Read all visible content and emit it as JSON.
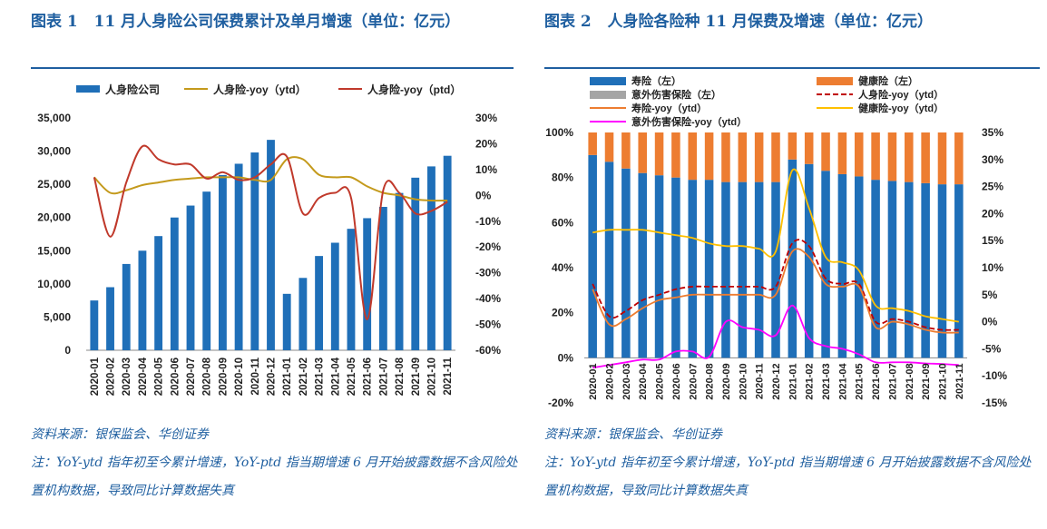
{
  "left": {
    "title_prefix": "图表 1",
    "title_text": "11 月人身险公司保费累计及单月增速（单位：亿元）",
    "source": "资料来源：银保监会、华创证券",
    "note": "注：YoY-ytd 指年初至今累计增速，YoY-ptd 指当期增速 6 月开始披露数据不含风险处置机构数据，导致同比计算数据失真"
  },
  "right": {
    "title_prefix": "图表 2",
    "title_text": "人身险各险种 11 月保费及增速（单位：亿元）",
    "source": "资料来源：银保监会、华创证券",
    "note": "注：YoY-ytd 指年初至今累计增速，YoY-ptd 指当期增速 6 月开始披露数据不含风险处置机构数据，导致同比计算数据失真"
  },
  "chart_data": [
    {
      "type": "bar",
      "title": "",
      "categories": [
        "2020-01",
        "2020-02",
        "2020-03",
        "2020-04",
        "2020-05",
        "2020-06",
        "2020-07",
        "2020-08",
        "2020-09",
        "2020-10",
        "2020-11",
        "2020-12",
        "2021-01",
        "2021-02",
        "2021-03",
        "2021-04",
        "2021-05",
        "2021-06",
        "2021-07",
        "2021-08",
        "2021-09",
        "2021-10",
        "2021-11"
      ],
      "ylim_left": [
        0,
        35000
      ],
      "yticks_left": [
        "0",
        "5,000",
        "10,000",
        "15,000",
        "20,000",
        "25,000",
        "30,000",
        "35,000"
      ],
      "ylim_right": [
        -60,
        30
      ],
      "yticks_right": [
        "-60%",
        "-50%",
        "-40%",
        "-30%",
        "-20%",
        "-10%",
        "0%",
        "10%",
        "20%",
        "30%"
      ],
      "legend_position": "top",
      "colors": {
        "bar": "#1f6fb8",
        "ytd": "#c49a1c",
        "ptd": "#c0392b"
      },
      "series": [
        {
          "name": "人身险公司",
          "type": "bar",
          "axis": "left",
          "values": [
            7500,
            9500,
            13000,
            15000,
            17200,
            20000,
            21800,
            23900,
            26400,
            28100,
            29800,
            31700,
            8500,
            10900,
            14200,
            16200,
            18300,
            19900,
            21600,
            23700,
            26000,
            27700,
            29300
          ]
        },
        {
          "name": "人身险-yoy（ytd）",
          "type": "line",
          "axis": "right",
          "values": [
            7,
            1,
            2,
            4,
            5,
            6,
            6.5,
            7,
            7,
            7,
            6,
            6,
            14,
            14,
            8,
            7,
            7,
            3.5,
            1,
            0,
            -1.5,
            -2,
            -2
          ]
        },
        {
          "name": "人身险-yoy（ptd）",
          "type": "line",
          "axis": "right",
          "values": [
            7,
            -16,
            5,
            19,
            14,
            12,
            12,
            6.5,
            9,
            6,
            7,
            12,
            15,
            -7,
            -1,
            1,
            -1,
            -48,
            2,
            1,
            -7,
            -6,
            -2.5
          ]
        }
      ]
    },
    {
      "type": "bar",
      "title": "",
      "categories": [
        "2020-01",
        "2020-02",
        "2020-03",
        "2020-04",
        "2020-05",
        "2020-06",
        "2020-07",
        "2020-08",
        "2020-09",
        "2020-10",
        "2020-11",
        "2020-12",
        "2021-01",
        "2021-02",
        "2021-03",
        "2021-04",
        "2021-05",
        "2021-06",
        "2021-07",
        "2021-08",
        "2021-09",
        "2021-10",
        "2021-11"
      ],
      "ylim_left": [
        -20,
        100
      ],
      "yticks_left": [
        "-20%",
        "0%",
        "20%",
        "40%",
        "60%",
        "80%",
        "100%"
      ],
      "ylim_right": [
        -15,
        35
      ],
      "yticks_right": [
        "-15%",
        "-10%",
        "-5%",
        "0%",
        "5%",
        "10%",
        "15%",
        "20%",
        "25%",
        "30%",
        "35%"
      ],
      "legend_position": "top",
      "colors": {
        "life": "#1f6fb8",
        "health": "#ed7d31",
        "accident": "#a5a5a5",
        "total_ytd": "#c00000",
        "life_ytd": "#ed7d31",
        "health_ytd": "#ffc000",
        "accident_ytd": "#ff00ff"
      },
      "series": [
        {
          "name": "寿险（左）",
          "type": "bar",
          "stack": "share",
          "axis": "left",
          "values": [
            90,
            87,
            84,
            82,
            81,
            80,
            79,
            79,
            78,
            78,
            78,
            78,
            88,
            86,
            83,
            81.5,
            80.5,
            79,
            78.5,
            78,
            77.5,
            77,
            77
          ]
        },
        {
          "name": "健康险（左）",
          "type": "bar",
          "stack": "share",
          "axis": "left",
          "values": [
            10,
            13,
            16,
            18,
            19,
            20,
            21,
            21,
            22,
            22,
            22,
            22,
            12,
            14,
            17,
            18.5,
            19.5,
            21,
            21.5,
            22,
            22.5,
            23,
            23
          ]
        },
        {
          "name": "意外伤害保险（左）",
          "type": "bar",
          "stack": "share",
          "axis": "left",
          "values": [
            0,
            0,
            0,
            0,
            0,
            0,
            0,
            0,
            0,
            0,
            0,
            0,
            0,
            0,
            0,
            0,
            0,
            0,
            0,
            0,
            0,
            0,
            0
          ]
        },
        {
          "name": "人身险-yoy（ytd）",
          "type": "line",
          "axis": "right",
          "values": [
            7,
            1,
            2,
            4,
            5,
            6,
            6.5,
            6.5,
            6.5,
            6.5,
            6.5,
            6.5,
            14.5,
            14,
            8,
            7,
            7,
            0,
            0.5,
            0,
            -1,
            -1.5,
            -1.5
          ]
        },
        {
          "name": "寿险-yoy（ytd）",
          "type": "line",
          "axis": "right",
          "values": [
            6,
            -0.5,
            0.5,
            2.5,
            4,
            4.5,
            5,
            5,
            5,
            5,
            5,
            5,
            13,
            12,
            7,
            6.5,
            6.5,
            -1,
            0,
            -0.5,
            -1.5,
            -2,
            -2
          ]
        },
        {
          "name": "健康险-yoy（ytd）",
          "type": "line",
          "axis": "right",
          "values": [
            16.5,
            17,
            17,
            17,
            16.5,
            16,
            15.5,
            14.5,
            14,
            14,
            13.5,
            13,
            28,
            21,
            12,
            11,
            9.5,
            3,
            2.5,
            2,
            1,
            0.5,
            0
          ]
        },
        {
          "name": "意外伤害保险-yoy（ytd）",
          "type": "line",
          "axis": "right",
          "values": [
            -8.5,
            -8,
            -7.5,
            -7,
            -7,
            -5.5,
            -5.5,
            -6.5,
            0,
            -1,
            -1.5,
            -2.5,
            3,
            -3,
            -4.5,
            -5,
            -6,
            -7.5,
            -7.5,
            -7.5,
            -7.7,
            -7.8,
            -8
          ]
        }
      ]
    }
  ]
}
